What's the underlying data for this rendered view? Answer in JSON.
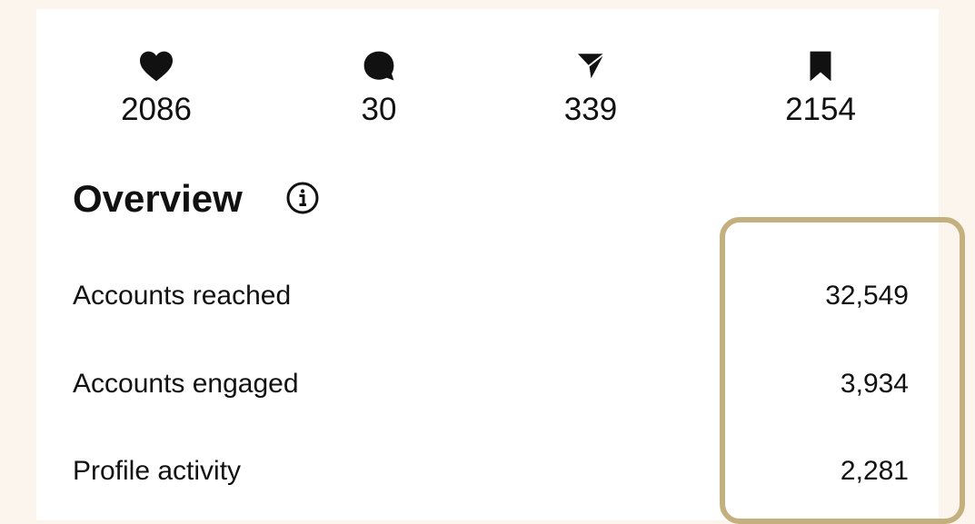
{
  "stats": [
    {
      "icon": "likes",
      "value": "2086"
    },
    {
      "icon": "comments",
      "value": "30"
    },
    {
      "icon": "shares",
      "value": "339"
    },
    {
      "icon": "saves",
      "value": "2154"
    }
  ],
  "overview": {
    "title": "Overview",
    "rows": [
      {
        "label": "Accounts reached",
        "value": "32,549"
      },
      {
        "label": "Accounts engaged",
        "value": "3,934"
      },
      {
        "label": "Profile activity",
        "value": "2,281"
      }
    ]
  }
}
